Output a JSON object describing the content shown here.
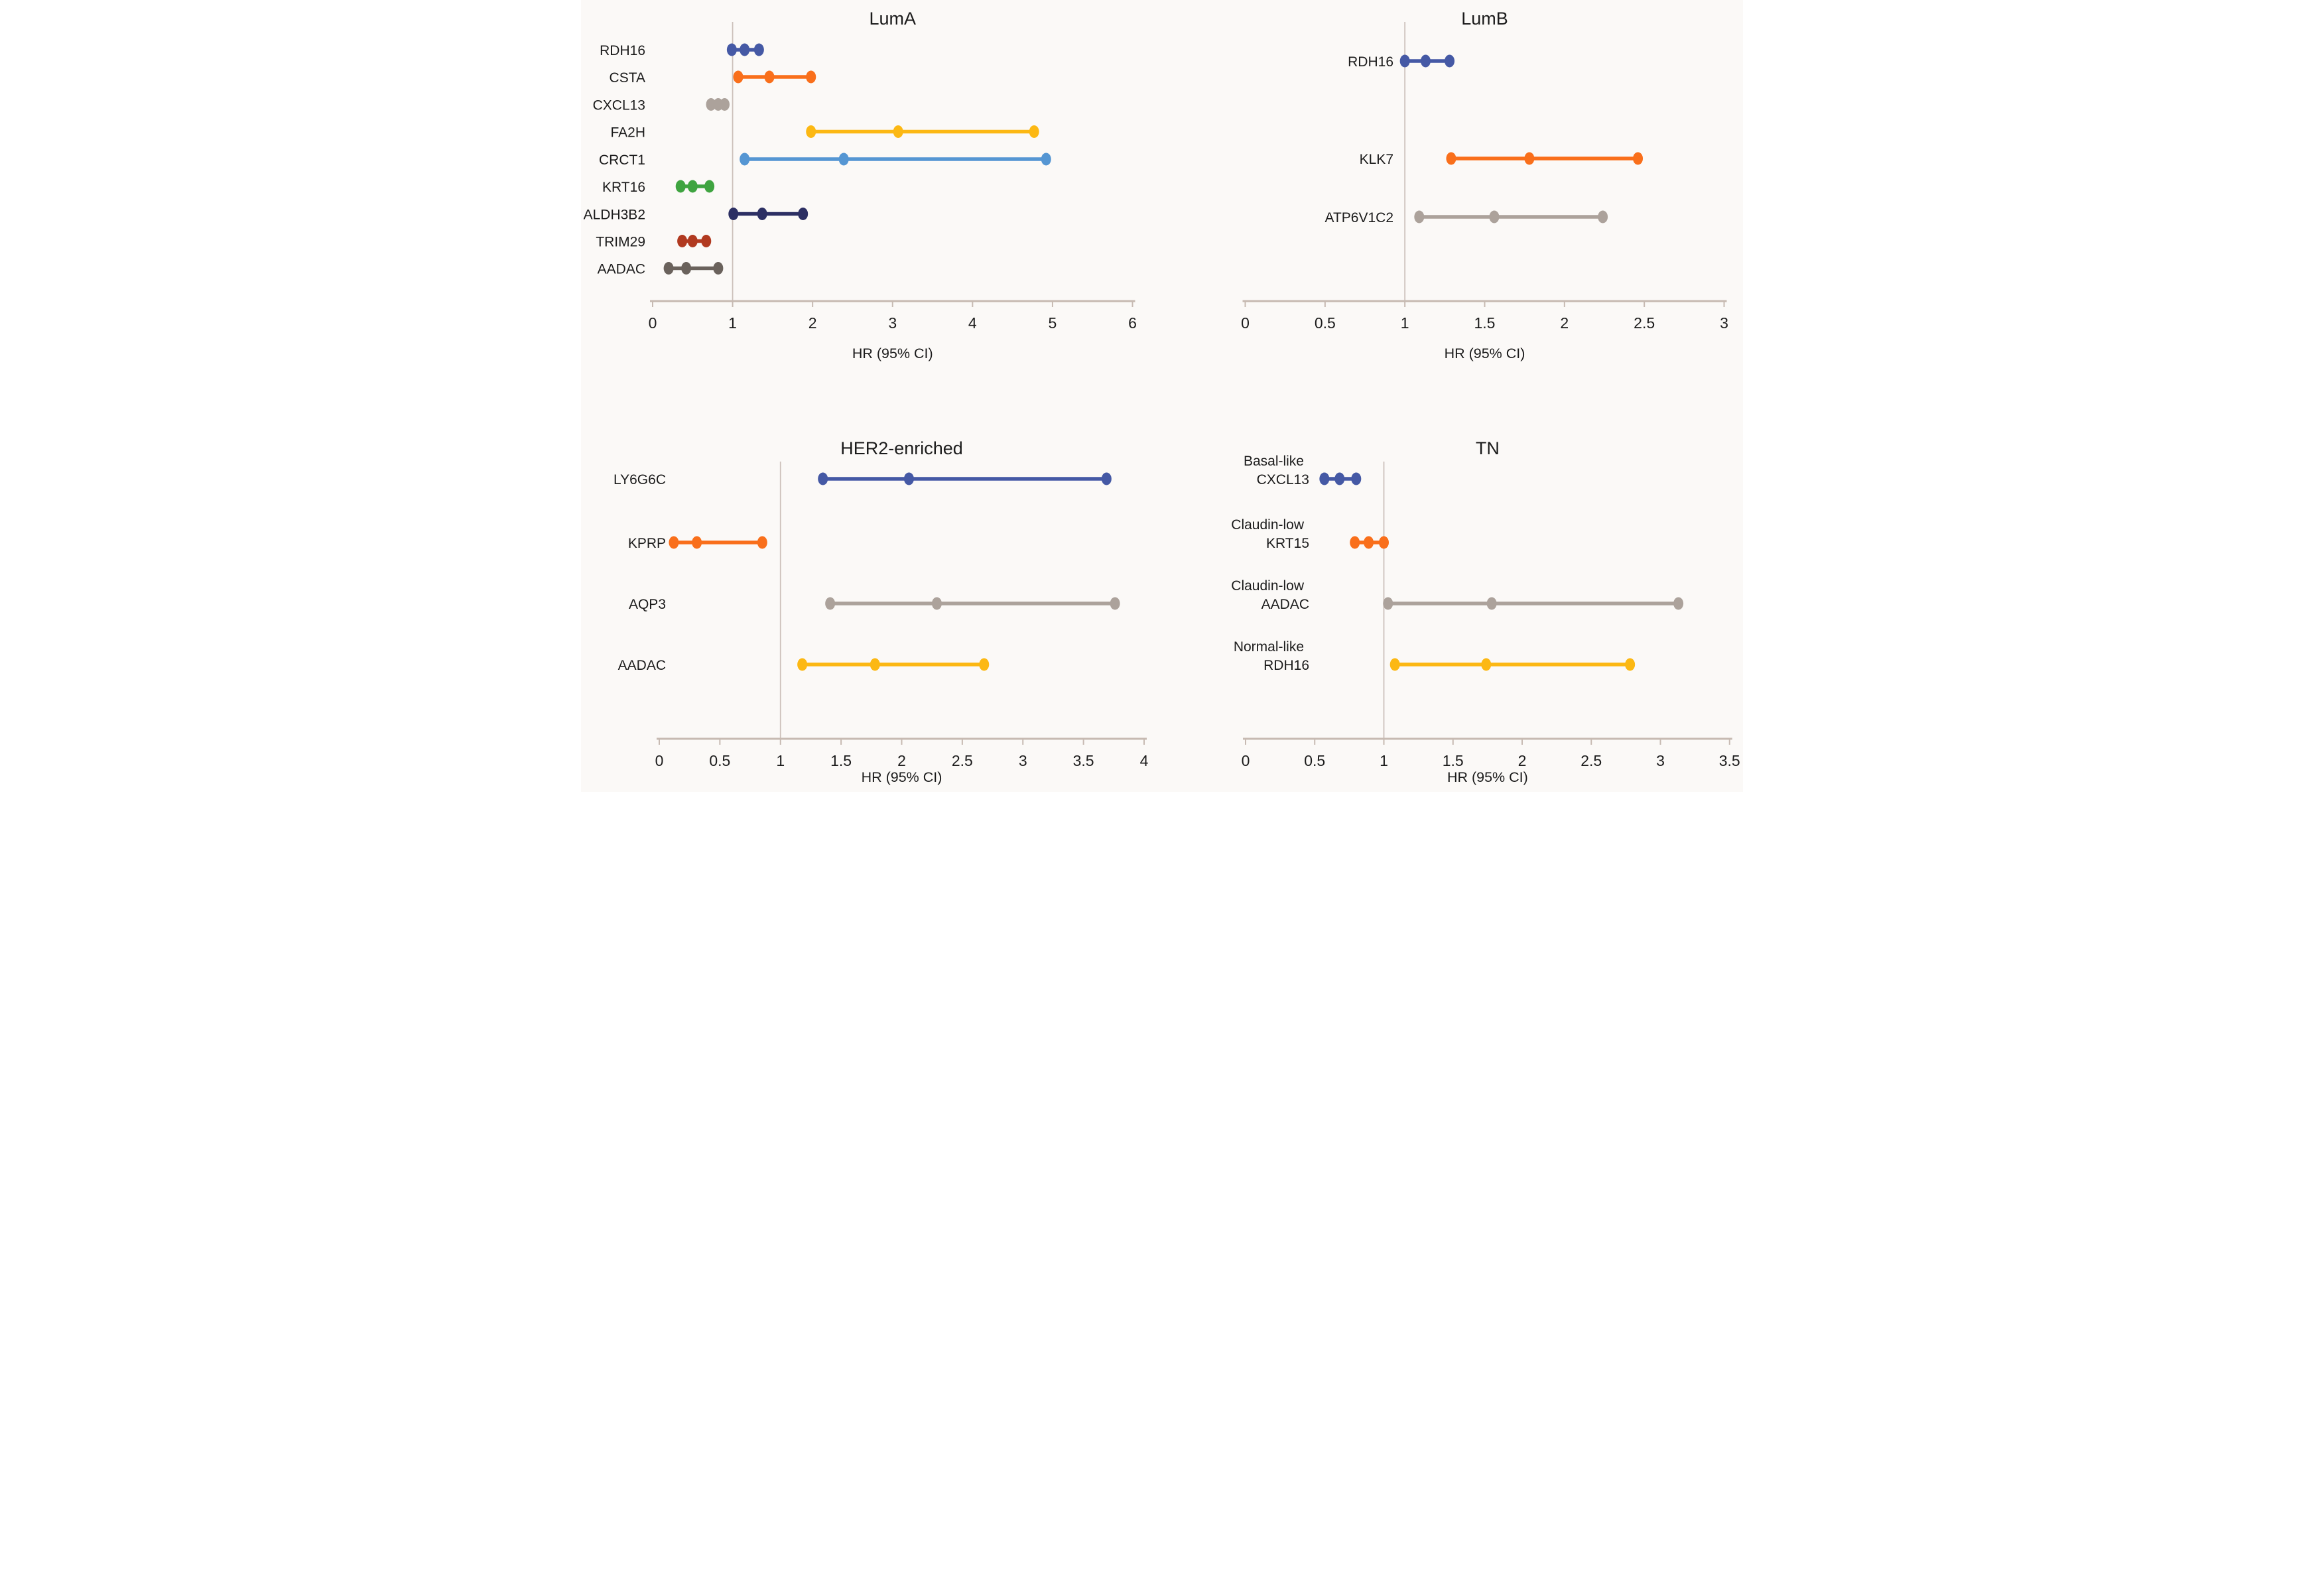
{
  "figure": {
    "background": "#FBF9F7",
    "text_color": "#1B1B1B",
    "axis_color": "#C7BAB2",
    "refline_color": "#CDC1BB"
  },
  "chart_data": [
    {
      "type": "scatter",
      "title": "LumA",
      "xlabel": "HR (95% CI)",
      "xlim": [
        0,
        6
      ],
      "xticks": [
        0,
        1,
        2,
        3,
        4,
        5,
        6
      ],
      "xtick_labels": [
        "0",
        "1",
        "2",
        "3",
        "4",
        "5",
        "6"
      ],
      "refline_x": 1,
      "grid": false,
      "legend": "none",
      "series": [
        {
          "label": "RDH16",
          "color": "#4559A5",
          "hr": 1.15,
          "ci_low": 0.99,
          "ci_high": 1.33
        },
        {
          "label": "CSTA",
          "color": "#F96F1B",
          "hr": 1.46,
          "ci_low": 1.07,
          "ci_high": 1.98
        },
        {
          "label": "CXCL13",
          "color": "#ACA29B",
          "hr": 0.82,
          "ci_low": 0.73,
          "ci_high": 0.9
        },
        {
          "label": "FA2H",
          "color": "#FCB813",
          "hr": 3.07,
          "ci_low": 1.98,
          "ci_high": 4.77
        },
        {
          "label": "CRCT1",
          "color": "#5596D3",
          "hr": 2.39,
          "ci_low": 1.15,
          "ci_high": 4.92
        },
        {
          "label": "KRT16",
          "color": "#3FA440",
          "hr": 0.5,
          "ci_low": 0.35,
          "ci_high": 0.71
        },
        {
          "label": "ALDH3B2",
          "color": "#2C2F63",
          "hr": 1.37,
          "ci_low": 1.01,
          "ci_high": 1.88
        },
        {
          "label": "TRIM29",
          "color": "#B13A20",
          "hr": 0.5,
          "ci_low": 0.37,
          "ci_high": 0.67
        },
        {
          "label": "AADAC",
          "color": "#6A625C",
          "hr": 0.42,
          "ci_low": 0.2,
          "ci_high": 0.82
        }
      ]
    },
    {
      "type": "scatter",
      "title": "LumB",
      "xlabel": "HR (95% CI)",
      "xlim": [
        0,
        3
      ],
      "xticks": [
        0,
        0.5,
        1,
        1.5,
        2,
        2.5,
        3
      ],
      "xtick_labels": [
        "0",
        "0.5",
        "1",
        "1.5",
        "2",
        "2.5",
        "3"
      ],
      "refline_x": 1,
      "grid": false,
      "legend": "none",
      "series": [
        {
          "label": "RDH16",
          "color": "#4559A5",
          "hr": 1.13,
          "ci_low": 1.0,
          "ci_high": 1.28
        },
        {
          "label": "KLK7",
          "color": "#F96F1B",
          "hr": 1.78,
          "ci_low": 1.29,
          "ci_high": 2.46
        },
        {
          "label": "ATP6V1C2",
          "color": "#ACA29B",
          "hr": 1.56,
          "ci_low": 1.09,
          "ci_high": 2.24
        }
      ]
    },
    {
      "type": "scatter",
      "title": "HER2-enriched",
      "xlabel": "HR (95% CI)",
      "xlim": [
        0,
        4
      ],
      "xticks": [
        0,
        0.5,
        1,
        1.5,
        2,
        2.5,
        3,
        3.5,
        4
      ],
      "xtick_labels": [
        "0",
        "0.5",
        "1",
        "1.5",
        "2",
        "2.5",
        "3",
        "3.5",
        "4"
      ],
      "refline_x": 1,
      "grid": false,
      "legend": "none",
      "series": [
        {
          "label": "LY6G6C",
          "color": "#4559A5",
          "hr": 2.06,
          "ci_low": 1.35,
          "ci_high": 3.69
        },
        {
          "label": "KPRP",
          "color": "#F96F1B",
          "hr": 0.31,
          "ci_low": 0.12,
          "ci_high": 0.85
        },
        {
          "label": "AQP3",
          "color": "#ACA29B",
          "hr": 2.29,
          "ci_low": 1.41,
          "ci_high": 3.76
        },
        {
          "label": "AADAC",
          "color": "#FCB813",
          "hr": 1.78,
          "ci_low": 1.18,
          "ci_high": 2.68
        }
      ]
    },
    {
      "type": "scatter",
      "title": "TN",
      "xlabel": "HR (95% CI)",
      "xlim": [
        0,
        3.5
      ],
      "xticks": [
        0,
        0.5,
        1,
        1.5,
        2,
        2.5,
        3,
        3.5
      ],
      "xtick_labels": [
        "0",
        "0.5",
        "1",
        "1.5",
        "2",
        "2.5",
        "3",
        "3.5"
      ],
      "refline_x": 1,
      "grid": false,
      "legend": "none",
      "series": [
        {
          "label": "CXCL13",
          "subtype": "Basal-like",
          "color": "#4559A5",
          "hr": 0.68,
          "ci_low": 0.57,
          "ci_high": 0.8
        },
        {
          "label": "KRT15",
          "subtype": "Claudin-low",
          "color": "#F96F1B",
          "hr": 0.89,
          "ci_low": 0.79,
          "ci_high": 1.0
        },
        {
          "label": "AADAC",
          "subtype": "Claudin-low",
          "color": "#ACA29B",
          "hr": 1.78,
          "ci_low": 1.03,
          "ci_high": 3.13
        },
        {
          "label": "RDH16",
          "subtype": "Normal-like",
          "color": "#FCB813",
          "hr": 1.74,
          "ci_low": 1.08,
          "ci_high": 2.78
        }
      ]
    }
  ]
}
